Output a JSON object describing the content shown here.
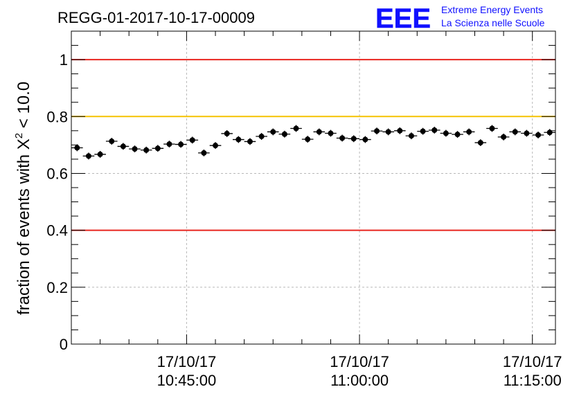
{
  "header": {
    "run_title": "REGG-01-2017-10-17-00009",
    "logo_text": "EEE",
    "logo_line1": "Extreme Energy Events",
    "logo_line2": "La Scienza nelle Scuole"
  },
  "chart_data": {
    "type": "scatter",
    "title": "REGG-01-2017-10-17-00009",
    "ylabel_prefix": "fraction of events with ",
    "ylabel_symbol": "X",
    "ylabel_sup": "2",
    "ylabel_suffix": " < 10.0",
    "xlabel": "",
    "ylim": [
      0,
      1.1
    ],
    "x_unit": "minutes after 10:35:00 on 17/10/17",
    "xlim": [
      0,
      42
    ],
    "yticks": [
      {
        "value": 0,
        "label": "0"
      },
      {
        "value": 0.2,
        "label": "0.2"
      },
      {
        "value": 0.4,
        "label": "0.4"
      },
      {
        "value": 0.6,
        "label": "0.6"
      },
      {
        "value": 0.8,
        "label": "0.8"
      },
      {
        "value": 1.0,
        "label": "1"
      }
    ],
    "xticks": [
      {
        "value": 10,
        "date": "17/10/17",
        "time": "10:45:00"
      },
      {
        "value": 25,
        "date": "17/10/17",
        "time": "11:00:00"
      },
      {
        "value": 40,
        "date": "17/10/17",
        "time": "11:15:00"
      }
    ],
    "grid": true,
    "reference_lines": [
      {
        "value": 1.0,
        "color": "#e8251f"
      },
      {
        "value": 0.8,
        "color": "#f5c200"
      },
      {
        "value": 0.4,
        "color": "#e8251f"
      }
    ],
    "marker_color": "#000000",
    "series": [
      {
        "x": [
          0.5,
          1.5,
          2.5,
          3.5,
          4.5,
          5.5,
          6.5,
          7.5,
          8.5,
          9.5,
          10.5,
          11.5,
          12.5,
          13.5,
          14.5,
          15.5,
          16.5,
          17.5,
          18.5,
          19.5,
          20.5,
          21.5,
          22.5,
          23.5,
          24.5,
          25.5,
          26.5,
          27.5,
          28.5,
          29.5,
          30.5,
          31.5,
          32.5,
          33.5,
          34.5,
          35.5,
          36.5,
          37.5,
          38.5,
          39.5,
          40.5,
          41.5
        ],
        "y": [
          0.69,
          0.661,
          0.667,
          0.713,
          0.695,
          0.686,
          0.682,
          0.688,
          0.703,
          0.702,
          0.717,
          0.672,
          0.698,
          0.74,
          0.719,
          0.712,
          0.73,
          0.746,
          0.738,
          0.758,
          0.72,
          0.746,
          0.741,
          0.724,
          0.722,
          0.719,
          0.749,
          0.746,
          0.75,
          0.732,
          0.748,
          0.752,
          0.741,
          0.737,
          0.746,
          0.708,
          0.758,
          0.728,
          0.746,
          0.741,
          0.735,
          0.744
        ],
        "err": [
          0.012,
          0.012,
          0.012,
          0.012,
          0.012,
          0.012,
          0.012,
          0.012,
          0.012,
          0.012,
          0.012,
          0.012,
          0.012,
          0.012,
          0.012,
          0.012,
          0.012,
          0.012,
          0.012,
          0.012,
          0.012,
          0.012,
          0.012,
          0.012,
          0.012,
          0.012,
          0.012,
          0.012,
          0.012,
          0.012,
          0.012,
          0.012,
          0.012,
          0.012,
          0.012,
          0.012,
          0.012,
          0.012,
          0.012,
          0.012,
          0.012,
          0.012
        ]
      }
    ]
  }
}
